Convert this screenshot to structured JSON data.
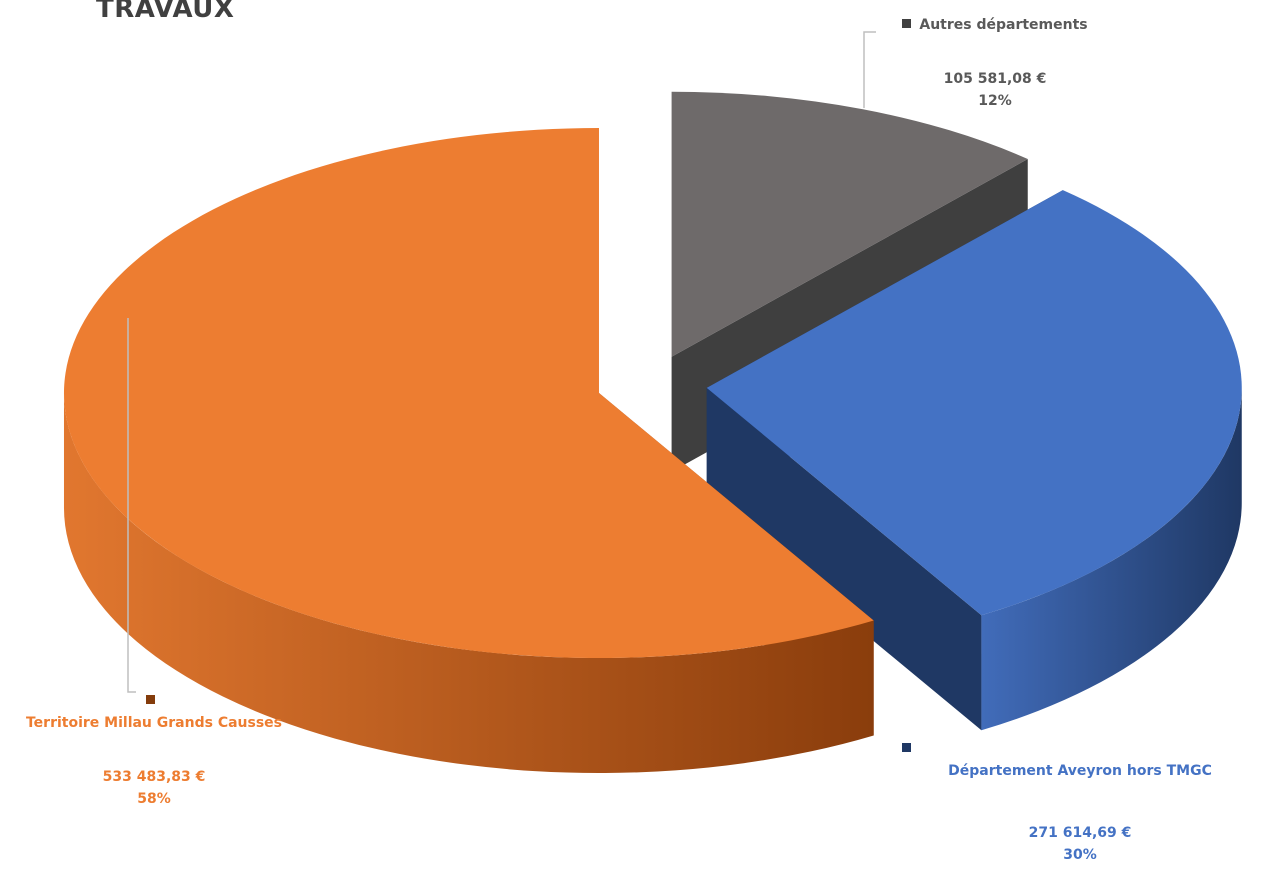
{
  "title": "TRAVAUX",
  "chart_data": {
    "type": "pie",
    "title": "TRAVAUX",
    "slices": [
      {
        "name": "Autres départements",
        "value": 105581.08,
        "value_label": "105 581,08 €",
        "percent_label": "12%",
        "color": "#6e6a6a",
        "text_color": "#595959"
      },
      {
        "name": "Département Aveyron hors TMGC",
        "value": 271614.69,
        "value_label": "271 614,69 €",
        "percent_label": "30%",
        "color": "#4472c4",
        "text_color": "#4472c4"
      },
      {
        "name": "Territoire Millau Grands Causses",
        "value": 533483.83,
        "value_label": "533 483,83 €",
        "percent_label": "58%",
        "color": "#ed7d31",
        "text_color": "#ed7d31"
      }
    ]
  }
}
